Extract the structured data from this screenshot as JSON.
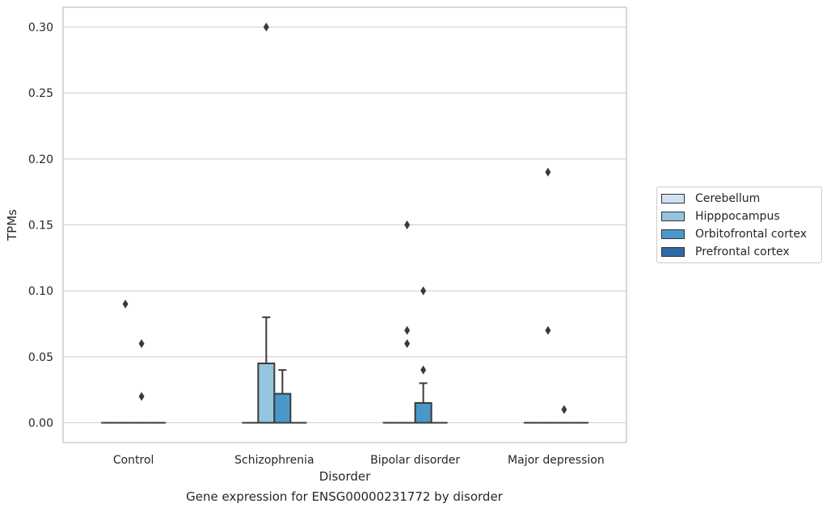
{
  "chart_data": {
    "type": "box",
    "xlabel": "Disorder",
    "ylabel": "TPMs",
    "caption": "Gene expression for ENSG00000231772 by disorder",
    "categories": [
      "Control",
      "Schizophrenia",
      "Bipolar disorder",
      "Major depression"
    ],
    "ylim": [
      -0.015,
      0.315
    ],
    "yticks": [
      "0.00",
      "0.05",
      "0.10",
      "0.15",
      "0.20",
      "0.25",
      "0.30"
    ],
    "grid": true,
    "legend_position": "right",
    "series": [
      {
        "name": "Cerebellum",
        "color": "#d0e1f2",
        "boxes": [
          {
            "q1": 0,
            "median": 0,
            "q3": 0,
            "whislo": 0,
            "whishi": 0,
            "fliers": []
          },
          {
            "q1": 0,
            "median": 0,
            "q3": 0,
            "whislo": 0,
            "whishi": 0,
            "fliers": []
          },
          {
            "q1": 0,
            "median": 0,
            "q3": 0,
            "whislo": 0,
            "whishi": 0,
            "fliers": []
          },
          {
            "q1": 0,
            "median": 0,
            "q3": 0,
            "whislo": 0,
            "whishi": 0,
            "fliers": []
          }
        ]
      },
      {
        "name": "Hipppocampus",
        "color": "#94c4df",
        "boxes": [
          {
            "q1": 0,
            "median": 0,
            "q3": 0,
            "whislo": 0,
            "whishi": 0,
            "fliers": [
              0.09
            ]
          },
          {
            "q1": 0,
            "median": 0,
            "q3": 0.045,
            "whislo": 0,
            "whishi": 0.08,
            "fliers": [
              0.3
            ]
          },
          {
            "q1": 0,
            "median": 0,
            "q3": 0,
            "whislo": 0,
            "whishi": 0,
            "fliers": [
              0.15,
              0.07,
              0.06
            ]
          },
          {
            "q1": 0,
            "median": 0,
            "q3": 0,
            "whislo": 0,
            "whishi": 0,
            "fliers": [
              0.19,
              0.07
            ]
          }
        ]
      },
      {
        "name": "Orbitofrontal cortex",
        "color": "#4a98c9",
        "boxes": [
          {
            "q1": 0,
            "median": 0,
            "q3": 0,
            "whislo": 0,
            "whishi": 0,
            "fliers": [
              0.06,
              0.02
            ]
          },
          {
            "q1": 0,
            "median": 0,
            "q3": 0.022,
            "whislo": 0,
            "whishi": 0.04,
            "fliers": []
          },
          {
            "q1": 0,
            "median": 0,
            "q3": 0.015,
            "whislo": 0,
            "whishi": 0.03,
            "fliers": [
              0.1,
              0.04
            ]
          },
          {
            "q1": 0,
            "median": 0,
            "q3": 0,
            "whislo": 0,
            "whishi": 0,
            "fliers": [
              0.01
            ]
          }
        ]
      },
      {
        "name": "Prefrontal cortex",
        "color": "#2e6aa8",
        "boxes": [
          {
            "q1": 0,
            "median": 0,
            "q3": 0,
            "whislo": 0,
            "whishi": 0,
            "fliers": []
          },
          {
            "q1": 0,
            "median": 0,
            "q3": 0,
            "whislo": 0,
            "whishi": 0,
            "fliers": []
          },
          {
            "q1": 0,
            "median": 0,
            "q3": 0,
            "whislo": 0,
            "whishi": 0,
            "fliers": []
          },
          {
            "q1": 0,
            "median": 0,
            "q3": 0,
            "whislo": 0,
            "whishi": 0,
            "fliers": []
          }
        ]
      }
    ]
  }
}
